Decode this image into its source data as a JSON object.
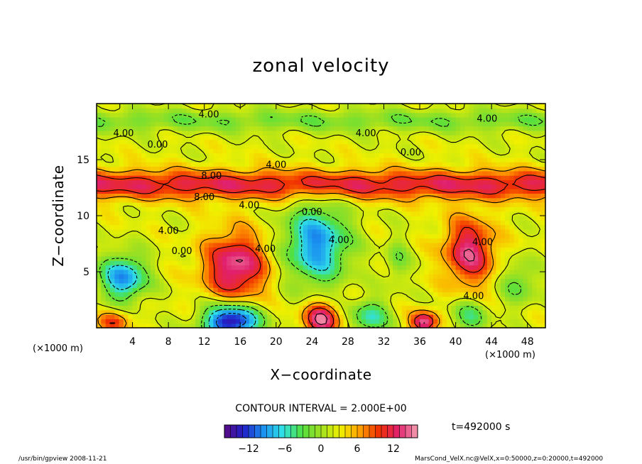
{
  "page": {
    "footer_left": "/usr/bin/gpview  2008-11-21",
    "footer_right": "MarsCond_VelX.nc@VelX,x=0:50000,z=0:20000,t=492000",
    "time_label": "t=492000 s",
    "contour_interval": "CONTOUR INTERVAL = 2.000E+00"
  },
  "chart_data": {
    "type": "heatmap",
    "title": "zonal velocity",
    "xlabel": "X−coordinate",
    "ylabel": "Z−coordinate",
    "x_unit": "(×1000 m)",
    "z_unit": "(×1000 m)",
    "xlim": [
      0,
      50
    ],
    "zlim": [
      0,
      20
    ],
    "x_ticks": [
      4,
      8,
      12,
      16,
      20,
      24,
      28,
      32,
      36,
      40,
      44,
      48
    ],
    "z_ticks": [
      5,
      10,
      15
    ],
    "colorbar": {
      "min": -16,
      "max": 16,
      "step": 2,
      "tick_values": [
        -12,
        -6,
        0,
        6,
        12
      ],
      "tick_labels": [
        "−12",
        "−6",
        "0",
        "6",
        "12"
      ]
    },
    "features": [
      {
        "kind": "band",
        "z": 12.8,
        "half_width": 1.3,
        "value": 9
      },
      {
        "kind": "band",
        "z": 18.5,
        "half_width": 1.0,
        "value": -4
      },
      {
        "kind": "blob",
        "x": 15.5,
        "z": 5.5,
        "rx": 3.5,
        "rz": 3.0,
        "value": 12
      },
      {
        "kind": "blob",
        "x": 24.5,
        "z": 7.5,
        "rx": 3.5,
        "rz": 3.5,
        "value": -12
      },
      {
        "kind": "blob",
        "x": 41.5,
        "z": 6.8,
        "rx": 2.8,
        "rz": 3.0,
        "value": 11
      },
      {
        "kind": "blob",
        "x": 15.0,
        "z": 0.6,
        "rx": 3.0,
        "rz": 1.5,
        "value": -18
      },
      {
        "kind": "blob",
        "x": 25.0,
        "z": 0.8,
        "rx": 2.0,
        "rz": 1.5,
        "value": 12
      },
      {
        "kind": "blob",
        "x": 36.5,
        "z": 0.5,
        "rx": 1.5,
        "rz": 1.0,
        "value": 12
      },
      {
        "kind": "blob",
        "x": 3.0,
        "z": 4.5,
        "rx": 2.5,
        "rz": 2.0,
        "value": -12
      },
      {
        "kind": "blob",
        "x": 30.5,
        "z": 1.0,
        "rx": 2.0,
        "rz": 1.5,
        "value": -8
      },
      {
        "kind": "blob",
        "x": 41.5,
        "z": 1.0,
        "rx": 2.0,
        "rz": 1.5,
        "value": -6
      },
      {
        "kind": "blob",
        "x": 33.5,
        "z": 6.0,
        "rx": 1.3,
        "rz": 2.0,
        "value": -4
      },
      {
        "kind": "blob",
        "x": 47.0,
        "z": 4.0,
        "rx": 2.0,
        "rz": 2.0,
        "value": -5
      },
      {
        "kind": "blob",
        "x": 2.0,
        "z": 0.6,
        "rx": 1.8,
        "rz": 1.0,
        "value": 7
      }
    ],
    "contour_labels": [
      {
        "text": "4.00",
        "x": 12.5,
        "z": 19.0
      },
      {
        "text": "4.00",
        "x": 3.0,
        "z": 17.3
      },
      {
        "text": "0.00",
        "x": 6.8,
        "z": 16.3
      },
      {
        "text": "4.00",
        "x": 30.0,
        "z": 17.3
      },
      {
        "text": "4.00",
        "x": 43.5,
        "z": 18.6
      },
      {
        "text": "0.00",
        "x": 35.0,
        "z": 15.6
      },
      {
        "text": "4.00",
        "x": 20.0,
        "z": 14.5
      },
      {
        "text": "8.00",
        "x": 12.8,
        "z": 13.5
      },
      {
        "text": "8.00",
        "x": 12.0,
        "z": 11.6
      },
      {
        "text": "4.00",
        "x": 17.0,
        "z": 10.9
      },
      {
        "text": "0.00",
        "x": 24.0,
        "z": 10.3
      },
      {
        "text": "4.00",
        "x": 8.0,
        "z": 8.6
      },
      {
        "text": "0.00",
        "x": 9.5,
        "z": 6.8
      },
      {
        "text": "4.00",
        "x": 18.8,
        "z": 7.0
      },
      {
        "text": "4.00",
        "x": 27.0,
        "z": 7.8
      },
      {
        "text": "4.00",
        "x": 43.0,
        "z": 7.6
      },
      {
        "text": "4.00",
        "x": 42.0,
        "z": 2.8
      }
    ],
    "colors": {
      "stops": [
        "#5a0a82",
        "#2020c8",
        "#1a90f0",
        "#30e0e8",
        "#50e040",
        "#a0e020",
        "#f0f000",
        "#ffa000",
        "#f03000",
        "#e0206e",
        "#f4a0b0"
      ]
    }
  }
}
